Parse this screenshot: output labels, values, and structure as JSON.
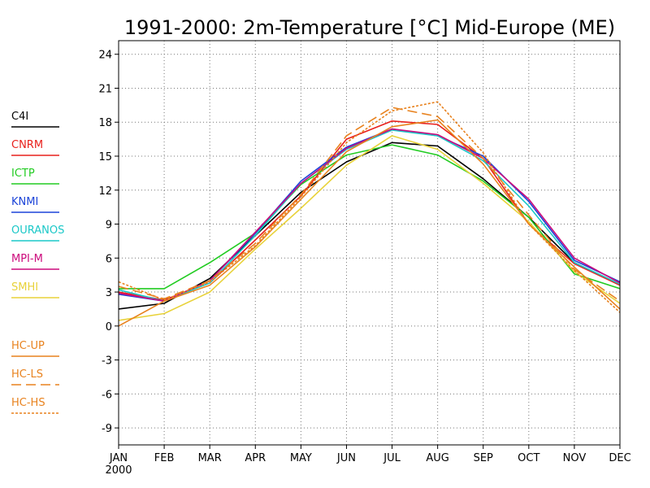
{
  "chart_data": {
    "type": "line",
    "title": "1991-2000: 2m-Temperature [°C] Mid-Europe (ME)",
    "categories": [
      "JAN",
      "FEB",
      "MAR",
      "APR",
      "MAY",
      "JUN",
      "JUL",
      "AUG",
      "SEP",
      "OCT",
      "NOV",
      "DEC"
    ],
    "x_sublabel": "2000",
    "ylim": [
      -10.5,
      25.2
    ],
    "yticks": [
      -9,
      -6,
      -3,
      0,
      3,
      6,
      9,
      12,
      15,
      18,
      21,
      24
    ],
    "grid": true,
    "legend_position": "left",
    "series": [
      {
        "name": "C4I",
        "color": "#000000",
        "dash": "solid",
        "values": [
          1.5,
          2.0,
          4.2,
          8.0,
          11.8,
          14.5,
          16.2,
          15.9,
          13.0,
          9.6,
          5.6,
          3.6
        ]
      },
      {
        "name": "CNRM",
        "color": "#e8201c",
        "dash": "solid",
        "values": [
          3.0,
          2.3,
          3.8,
          7.6,
          11.5,
          16.5,
          18.1,
          17.8,
          14.8,
          9.0,
          5.5,
          3.6
        ]
      },
      {
        "name": "ICTP",
        "color": "#22cc22",
        "dash": "solid",
        "values": [
          3.3,
          3.3,
          5.6,
          8.2,
          12.5,
          15.1,
          16.0,
          15.1,
          12.8,
          9.6,
          4.6,
          3.3
        ]
      },
      {
        "name": "KNMI",
        "color": "#1c44d8",
        "dash": "solid",
        "values": [
          2.8,
          2.2,
          4.0,
          8.2,
          12.8,
          15.8,
          17.4,
          16.8,
          15.0,
          11.0,
          5.8,
          3.9
        ]
      },
      {
        "name": "OURANOS",
        "color": "#1cc8c8",
        "dash": "solid",
        "values": [
          3.2,
          2.2,
          3.8,
          8.0,
          12.6,
          15.6,
          17.3,
          16.8,
          14.6,
          10.6,
          5.6,
          3.7
        ]
      },
      {
        "name": "MPI-M",
        "color": "#cc0a7c",
        "dash": "solid",
        "values": [
          2.9,
          2.2,
          4.0,
          8.3,
          12.6,
          15.7,
          17.4,
          16.9,
          14.8,
          11.2,
          6.0,
          3.8
        ]
      },
      {
        "name": "SMHI",
        "color": "#e8d23a",
        "dash": "solid",
        "values": [
          0.5,
          1.1,
          3.0,
          6.8,
          10.4,
          14.2,
          16.8,
          15.6,
          12.6,
          9.2,
          4.8,
          2.0
        ]
      },
      {
        "name": "HC-UP",
        "color": "#e8821e",
        "dash": "solid",
        "values": [
          0.0,
          2.2,
          3.6,
          7.0,
          11.2,
          15.4,
          17.6,
          18.2,
          14.3,
          9.0,
          5.2,
          1.5
        ]
      },
      {
        "name": "HC-LS",
        "color": "#e8821e",
        "dash": "long-dash",
        "values": [
          3.5,
          2.4,
          4.0,
          7.3,
          11.6,
          16.8,
          19.3,
          18.5,
          14.8,
          9.8,
          5.0,
          2.2
        ]
      },
      {
        "name": "HC-HS",
        "color": "#e8821e",
        "dash": "short-dash",
        "values": [
          3.9,
          2.3,
          3.9,
          7.1,
          11.4,
          16.2,
          19.0,
          19.8,
          15.3,
          9.0,
          4.9,
          1.2
        ]
      }
    ]
  }
}
